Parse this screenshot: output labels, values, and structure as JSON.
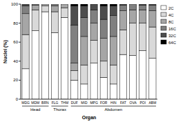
{
  "chart_data": {
    "type": "bar",
    "stacked": true,
    "x_label": "Organ",
    "y_label": "Nuclei (%)",
    "categories": [
      "MDG",
      "MDM",
      "BRN",
      "FLG",
      "THM",
      "DUF",
      "MID",
      "MPG",
      "FOR",
      "HIN",
      "FAT",
      "OVA",
      "POI",
      "ABM"
    ],
    "groups": [
      {
        "label": "Head",
        "start": 0,
        "end": 2
      },
      {
        "label": "Thorax",
        "start": 3,
        "end": 4
      },
      {
        "label": "Abdomen",
        "start": 5,
        "end": 13
      }
    ],
    "series": [
      {
        "name": "2C",
        "color": "#ffffff",
        "values": [
          32,
          72,
          92,
          70,
          86,
          20,
          16,
          38,
          23,
          16,
          47,
          46,
          51,
          43
        ]
      },
      {
        "name": "4C",
        "color": "#d9d9d9",
        "values": [
          36,
          22,
          6,
          22,
          10,
          10,
          20,
          24,
          17,
          20,
          26,
          34,
          29,
          33
        ]
      },
      {
        "name": "8C",
        "color": "#a6a6a6",
        "values": [
          22,
          5,
          2,
          6,
          4,
          8,
          30,
          18,
          24,
          30,
          20,
          14,
          14,
          17
        ]
      },
      {
        "name": "16C",
        "color": "#808080",
        "values": [
          8,
          1,
          0,
          2,
          0,
          40,
          20,
          14,
          20,
          22,
          6,
          6,
          5,
          6
        ]
      },
      {
        "name": "32C",
        "color": "#4d4d4d",
        "values": [
          2,
          0,
          0,
          0,
          0,
          20,
          12,
          6,
          14,
          10,
          1,
          0,
          1,
          1
        ]
      },
      {
        "name": "64C",
        "color": "#000000",
        "values": [
          0,
          0,
          0,
          0,
          0,
          2,
          2,
          0,
          2,
          2,
          0,
          0,
          0,
          0
        ]
      }
    ],
    "ylim": [
      0,
      100
    ],
    "yticks": [
      0,
      20,
      40,
      60,
      80,
      100
    ],
    "legend": "right"
  }
}
